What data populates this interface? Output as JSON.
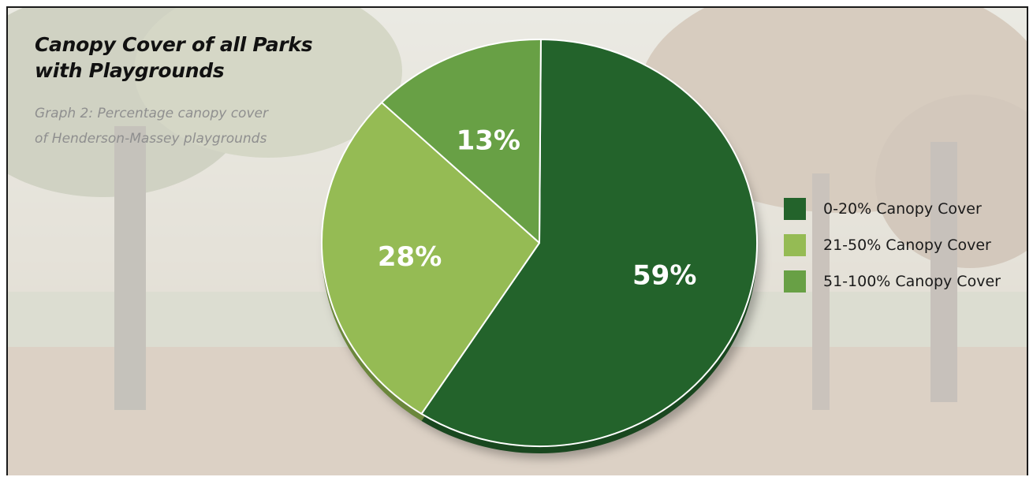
{
  "header": {
    "title": "Canopy Cover of all Parks with Playgrounds",
    "subtitle": "Graph 2: Percentage canopy cover of Henderson-Massey playgrounds"
  },
  "chart_data": {
    "type": "pie",
    "title": "Canopy Cover of all Parks with Playgrounds",
    "subtitle": "Graph 2: Percentage canopy cover of Henderson-Massey playgrounds",
    "slices": [
      {
        "label": "0-20% Canopy Cover",
        "value": 59,
        "display": "59%",
        "color": "#23632b"
      },
      {
        "label": "21-50% Canopy Cover",
        "value": 28,
        "display": "28%",
        "color": "#95bb54"
      },
      {
        "label": "51-100% Canopy Cover",
        "value": 13,
        "display": "13%",
        "color": "#68a045"
      }
    ],
    "legend": "right",
    "style": "3d"
  },
  "colors": {
    "slice_edge": "#ffffff",
    "label_text": "#ffffff"
  }
}
